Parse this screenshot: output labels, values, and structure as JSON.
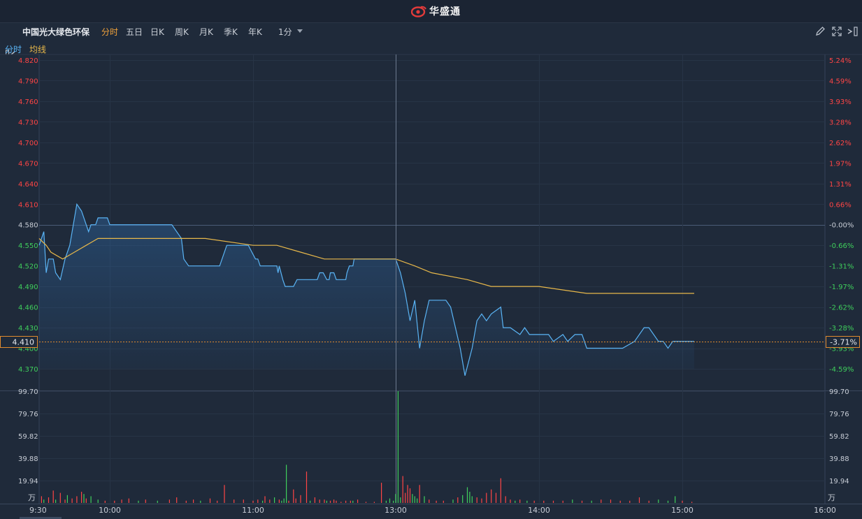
{
  "brand": {
    "name": "华盛通"
  },
  "toolbar": {
    "stock_name": "中国光大绿色环保",
    "periods": [
      "分时",
      "五日",
      "日K",
      "周K",
      "月K",
      "季K",
      "年K"
    ],
    "active_period": "分时",
    "interval": "1分"
  },
  "legend": {
    "line_label": "分时",
    "avg_label": "均线"
  },
  "colors": {
    "price_line": "#5ab4f5",
    "avg_line": "#e8b84a",
    "up": "#ff4545",
    "down": "#3fcf5c",
    "neutral": "#c8cdd6",
    "active_tab": "#f0a23a"
  },
  "chart_data": {
    "type": "line",
    "prev_close": 4.58,
    "last_price_label": "4.410",
    "last_change_label": "-3.71%",
    "price_ticks": [
      "4.820",
      "4.790",
      "4.760",
      "4.730",
      "4.700",
      "4.670",
      "4.640",
      "4.610",
      "4.580",
      "4.550",
      "4.520",
      "4.490",
      "4.460",
      "4.430",
      "4.400",
      "4.370"
    ],
    "pct_ticks": [
      "5.24%",
      "4.59%",
      "3.93%",
      "3.28%",
      "2.62%",
      "1.97%",
      "1.31%",
      "0.66%",
      "-0.00%",
      "-0.66%",
      "-1.31%",
      "-1.97%",
      "-2.62%",
      "-3.28%",
      "-3.93%",
      "-4.59%"
    ],
    "price_ylim": [
      4.37,
      4.82
    ],
    "time_labels": [
      "9:30",
      "10:00",
      "11:00",
      "13:00",
      "14:00",
      "15:00",
      "16:00"
    ],
    "series": [
      {
        "name": "分时",
        "points": [
          [
            "9:30",
            4.55
          ],
          [
            "9:32",
            4.57
          ],
          [
            "9:33",
            4.51
          ],
          [
            "9:34",
            4.53
          ],
          [
            "9:36",
            4.53
          ],
          [
            "9:37",
            4.51
          ],
          [
            "9:39",
            4.5
          ],
          [
            "9:41",
            4.53
          ],
          [
            "9:43",
            4.55
          ],
          [
            "9:46",
            4.61
          ],
          [
            "9:48",
            4.6
          ],
          [
            "9:51",
            4.57
          ],
          [
            "9:52",
            4.58
          ],
          [
            "9:54",
            4.58
          ],
          [
            "9:55",
            4.59
          ],
          [
            "9:59",
            4.59
          ],
          [
            "10:00",
            4.58
          ],
          [
            "10:26",
            4.58
          ],
          [
            "10:30",
            4.56
          ],
          [
            "10:31",
            4.53
          ],
          [
            "10:33",
            4.52
          ],
          [
            "10:46",
            4.52
          ],
          [
            "10:49",
            4.55
          ],
          [
            "10:58",
            4.55
          ],
          [
            "11:02",
            4.53
          ],
          [
            "11:04",
            4.53
          ],
          [
            "11:06",
            4.52
          ],
          [
            "11:20",
            4.52
          ],
          [
            "11:21",
            4.51
          ],
          [
            "11:22",
            4.52
          ],
          [
            "11:25",
            4.5
          ],
          [
            "11:27",
            4.49
          ],
          [
            "11:34",
            4.49
          ],
          [
            "11:37",
            4.5
          ],
          [
            "11:40",
            4.5
          ],
          [
            "11:44",
            4.5
          ],
          [
            "11:50",
            4.5
          ],
          [
            "11:54",
            4.5
          ],
          [
            "11:56",
            4.51
          ],
          [
            "11:59",
            4.51
          ],
          [
            "12:02",
            4.5
          ],
          [
            "12:04",
            4.5
          ],
          [
            "12:05",
            4.51
          ],
          [
            "12:08",
            4.51
          ],
          [
            "12:10",
            4.5
          ],
          [
            "12:18",
            4.5
          ],
          [
            "12:19",
            4.51
          ],
          [
            "12:21",
            4.52
          ],
          [
            "12:24",
            4.52
          ],
          [
            "12:25",
            4.53
          ],
          [
            "12:28",
            4.53
          ],
          [
            "12:30",
            4.53
          ],
          [
            "12:32",
            4.53
          ],
          [
            "12:38",
            4.53
          ],
          [
            "12:41",
            4.53
          ],
          [
            "12:52",
            4.53
          ],
          [
            "13:00",
            4.53
          ],
          [
            "13:02",
            4.51
          ],
          [
            "13:04",
            4.48
          ],
          [
            "13:06",
            4.44
          ],
          [
            "13:08",
            4.47
          ],
          [
            "13:10",
            4.4
          ],
          [
            "13:12",
            4.44
          ],
          [
            "13:14",
            4.47
          ],
          [
            "13:21",
            4.47
          ],
          [
            "13:23",
            4.46
          ],
          [
            "13:27",
            4.4
          ],
          [
            "13:29",
            4.36
          ],
          [
            "13:32",
            4.4
          ],
          [
            "13:34",
            4.44
          ],
          [
            "13:36",
            4.45
          ],
          [
            "13:38",
            4.44
          ],
          [
            "13:40",
            4.45
          ],
          [
            "13:44",
            4.46
          ],
          [
            "13:45",
            4.43
          ],
          [
            "13:48",
            4.43
          ],
          [
            "13:52",
            4.42
          ],
          [
            "13:54",
            4.43
          ],
          [
            "13:56",
            4.42
          ],
          [
            "13:59",
            4.42
          ],
          [
            "14:00",
            4.42
          ],
          [
            "14:04",
            4.42
          ],
          [
            "14:06",
            4.41
          ],
          [
            "14:10",
            4.42
          ],
          [
            "14:12",
            4.41
          ],
          [
            "14:15",
            4.42
          ],
          [
            "14:18",
            4.42
          ],
          [
            "14:20",
            4.4
          ],
          [
            "14:35",
            4.4
          ],
          [
            "14:40",
            4.41
          ],
          [
            "14:44",
            4.43
          ],
          [
            "14:46",
            4.43
          ],
          [
            "14:50",
            4.41
          ],
          [
            "14:52",
            4.41
          ],
          [
            "14:54",
            4.4
          ],
          [
            "14:56",
            4.41
          ],
          [
            "15:00",
            4.41
          ],
          [
            "15:05",
            4.41
          ]
        ]
      },
      {
        "name": "均线",
        "points": [
          [
            "9:30",
            4.56
          ],
          [
            "9:33",
            4.55
          ],
          [
            "9:35",
            4.54
          ],
          [
            "9:40",
            4.53
          ],
          [
            "9:45",
            4.54
          ],
          [
            "9:50",
            4.55
          ],
          [
            "9:55",
            4.56
          ],
          [
            "10:00",
            4.56
          ],
          [
            "10:20",
            4.56
          ],
          [
            "10:40",
            4.56
          ],
          [
            "11:00",
            4.55
          ],
          [
            "11:20",
            4.55
          ],
          [
            "11:40",
            4.54
          ],
          [
            "12:00",
            4.53
          ],
          [
            "12:30",
            4.53
          ],
          [
            "13:00",
            4.53
          ],
          [
            "13:08",
            4.52
          ],
          [
            "13:15",
            4.51
          ],
          [
            "13:30",
            4.5
          ],
          [
            "13:40",
            4.49
          ],
          [
            "14:00",
            4.49
          ],
          [
            "14:20",
            4.48
          ],
          [
            "14:40",
            4.48
          ],
          [
            "15:00",
            4.48
          ],
          [
            "15:05",
            4.48
          ]
        ]
      }
    ],
    "volume": {
      "unit": "万",
      "ticks": [
        "99.70",
        "79.76",
        "59.82",
        "39.88",
        "19.94"
      ],
      "ymax": 99.7,
      "bars": [
        [
          "9:31",
          6,
          "up"
        ],
        [
          "9:32",
          3,
          "down"
        ],
        [
          "9:34",
          5,
          "up"
        ],
        [
          "9:36",
          11,
          "up"
        ],
        [
          "9:37",
          3,
          "down"
        ],
        [
          "9:39",
          9,
          "up"
        ],
        [
          "9:41",
          3,
          "up"
        ],
        [
          "9:42",
          7,
          "down"
        ],
        [
          "9:44",
          4,
          "up"
        ],
        [
          "9:46",
          6,
          "up"
        ],
        [
          "9:48",
          10,
          "up"
        ],
        [
          "9:49",
          8,
          "down"
        ],
        [
          "9:50",
          4,
          "up"
        ],
        [
          "9:52",
          6,
          "down"
        ],
        [
          "9:55",
          3,
          "down"
        ],
        [
          "9:58",
          2,
          "up"
        ],
        [
          "10:02",
          2,
          "up"
        ],
        [
          "10:05",
          3,
          "up"
        ],
        [
          "10:08",
          4,
          "up"
        ],
        [
          "10:12",
          2,
          "down"
        ],
        [
          "10:15",
          3,
          "up"
        ],
        [
          "10:20",
          2,
          "down"
        ],
        [
          "10:25",
          3,
          "up"
        ],
        [
          "10:28",
          5,
          "up"
        ],
        [
          "10:32",
          2,
          "up"
        ],
        [
          "10:35",
          3,
          "up"
        ],
        [
          "10:38",
          2,
          "down"
        ],
        [
          "10:42",
          4,
          "up"
        ],
        [
          "10:45",
          2,
          "up"
        ],
        [
          "10:48",
          16,
          "up"
        ],
        [
          "10:52",
          3,
          "up"
        ],
        [
          "10:56",
          3,
          "up"
        ],
        [
          "11:00",
          2,
          "up"
        ],
        [
          "11:04",
          3,
          "up"
        ],
        [
          "11:08",
          2,
          "down"
        ],
        [
          "11:10",
          6,
          "up"
        ],
        [
          "11:14",
          3,
          "up"
        ],
        [
          "11:18",
          5,
          "down"
        ],
        [
          "11:22",
          3,
          "up"
        ],
        [
          "11:24",
          2,
          "down"
        ],
        [
          "11:26",
          4,
          "down"
        ],
        [
          "11:28",
          34,
          "down"
        ],
        [
          "11:30",
          2,
          "up"
        ],
        [
          "11:34",
          12,
          "up"
        ],
        [
          "11:36",
          4,
          "up"
        ],
        [
          "11:40",
          7,
          "up"
        ],
        [
          "11:45",
          28,
          "up"
        ],
        [
          "11:48",
          2,
          "down"
        ],
        [
          "11:52",
          5,
          "up"
        ],
        [
          "11:56",
          3,
          "up"
        ],
        [
          "12:00",
          3,
          "up"
        ],
        [
          "12:02",
          2,
          "down"
        ],
        [
          "12:05",
          2,
          "up"
        ],
        [
          "12:08",
          3,
          "up"
        ],
        [
          "12:10",
          2,
          "up"
        ],
        [
          "12:14",
          1,
          "up"
        ],
        [
          "12:18",
          2,
          "up"
        ],
        [
          "12:22",
          2,
          "up"
        ],
        [
          "12:24",
          2,
          "down"
        ],
        [
          "12:28",
          3,
          "up"
        ],
        [
          "12:35",
          1,
          "up"
        ],
        [
          "12:42",
          1,
          "up"
        ],
        [
          "12:48",
          18,
          "up"
        ],
        [
          "12:52",
          2,
          "down"
        ],
        [
          "12:55",
          4,
          "down"
        ],
        [
          "12:58",
          2,
          "down"
        ],
        [
          "13:00",
          8,
          "down"
        ],
        [
          "13:01",
          99.7,
          "down"
        ],
        [
          "13:02",
          5,
          "down"
        ],
        [
          "13:03",
          24,
          "up"
        ],
        [
          "13:04",
          9,
          "up"
        ],
        [
          "13:05",
          16,
          "up"
        ],
        [
          "13:06",
          13,
          "up"
        ],
        [
          "13:07",
          8,
          "down"
        ],
        [
          "13:08",
          6,
          "down"
        ],
        [
          "13:09",
          4,
          "down"
        ],
        [
          "13:10",
          16,
          "up"
        ],
        [
          "13:12",
          6,
          "down"
        ],
        [
          "13:14",
          3,
          "up"
        ],
        [
          "13:17",
          2,
          "up"
        ],
        [
          "13:20",
          2,
          "up"
        ],
        [
          "13:24",
          3,
          "down"
        ],
        [
          "13:26",
          5,
          "up"
        ],
        [
          "13:28",
          7,
          "down"
        ],
        [
          "13:30",
          14,
          "down"
        ],
        [
          "13:31",
          10,
          "down"
        ],
        [
          "13:32",
          6,
          "down"
        ],
        [
          "13:34",
          5,
          "up"
        ],
        [
          "13:36",
          4,
          "up"
        ],
        [
          "13:38",
          9,
          "up"
        ],
        [
          "13:40",
          12,
          "up"
        ],
        [
          "13:42",
          9,
          "up"
        ],
        [
          "13:44",
          22,
          "up"
        ],
        [
          "13:46",
          6,
          "up"
        ],
        [
          "13:48",
          3,
          "up"
        ],
        [
          "13:50",
          2,
          "down"
        ],
        [
          "13:52",
          3,
          "up"
        ],
        [
          "13:55",
          2,
          "down"
        ],
        [
          "13:58",
          2,
          "up"
        ],
        [
          "14:02",
          2,
          "up"
        ],
        [
          "14:06",
          2,
          "up"
        ],
        [
          "14:10",
          2,
          "up"
        ],
        [
          "14:14",
          3,
          "down"
        ],
        [
          "14:18",
          2,
          "up"
        ],
        [
          "14:22",
          2,
          "down"
        ],
        [
          "14:26",
          3,
          "up"
        ],
        [
          "14:30",
          3,
          "up"
        ],
        [
          "14:34",
          2,
          "up"
        ],
        [
          "14:38",
          2,
          "up"
        ],
        [
          "14:42",
          5,
          "up"
        ],
        [
          "14:46",
          2,
          "up"
        ],
        [
          "14:50",
          3,
          "down"
        ],
        [
          "14:54",
          2,
          "down"
        ],
        [
          "14:57",
          6,
          "down"
        ],
        [
          "15:00",
          2,
          "up"
        ],
        [
          "15:04",
          1,
          "up"
        ]
      ]
    }
  }
}
